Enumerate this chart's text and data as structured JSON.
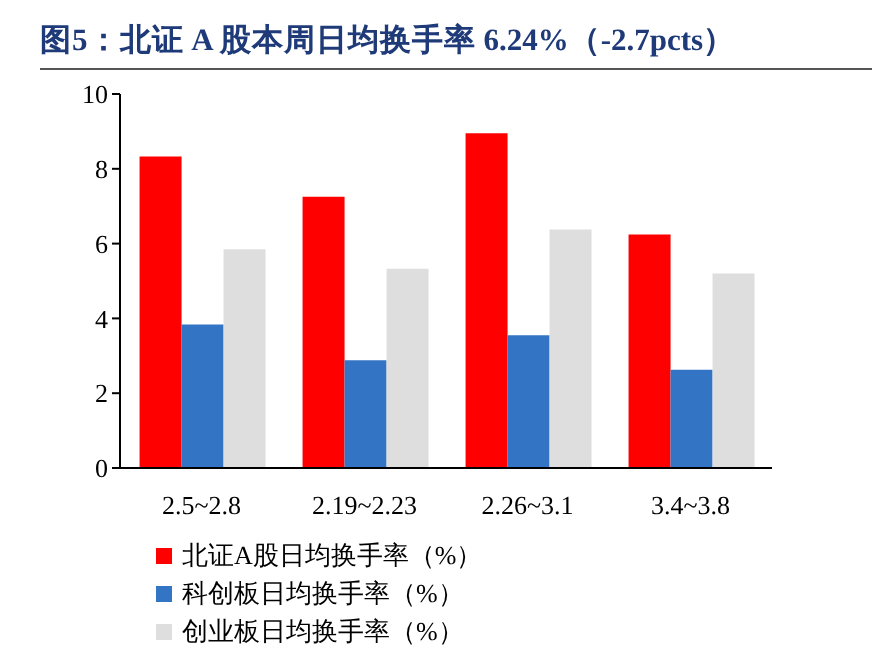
{
  "chart_data": {
    "type": "bar",
    "title": "图5：北证 A 股本周日均换手率 6.24%（-2.7pcts）",
    "categories": [
      "2.5~2.8",
      "2.19~2.23",
      "2.26~3.1",
      "3.4~3.8"
    ],
    "series": [
      {
        "name": "北证A股日均换手率（%）",
        "color": "#ff0000",
        "values": [
          8.33,
          7.25,
          8.95,
          6.24
        ]
      },
      {
        "name": "科创板日均换手率（%）",
        "color": "#3375c4",
        "values": [
          3.84,
          2.88,
          3.55,
          2.63
        ]
      },
      {
        "name": "创业板日均换手率（%）",
        "color": "#dedede",
        "values": [
          5.85,
          5.33,
          6.38,
          5.2
        ]
      }
    ],
    "ylim": [
      0,
      10
    ],
    "yticks": [
      0,
      2,
      4,
      6,
      8,
      10
    ],
    "grid": false,
    "legend": "bottom"
  }
}
